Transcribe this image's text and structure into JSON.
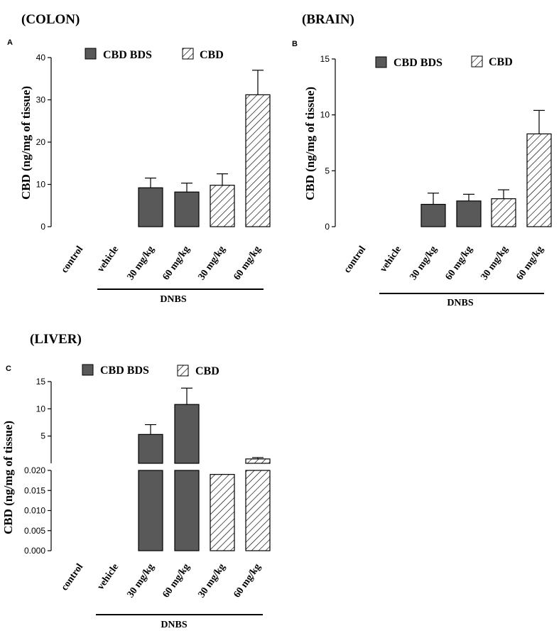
{
  "figure": {
    "colors": {
      "cbd_bds": "#595959",
      "cbd": "#ffffff",
      "axis": "#000000"
    },
    "x_group_label": "DNBS"
  },
  "chart_data": [
    {
      "type": "bar",
      "panel": "A",
      "title": "(COLON)",
      "ylabel": "CBD (ng/mg of tissue)",
      "ylim": [
        0,
        40
      ],
      "yticks": [
        "0",
        "10",
        "20",
        "30",
        "40"
      ],
      "yticks_values": [
        0,
        10,
        20,
        30,
        40
      ],
      "categories": [
        "control",
        "vehicle",
        "30 mg/kg",
        "60 mg/kg",
        "30 mg/kg",
        "60 mg/kg"
      ],
      "group_label": "DNBS",
      "legend": [
        "CBD BDS",
        "CBD"
      ],
      "series": [
        {
          "name": "CBD BDS",
          "values": [
            null,
            null,
            9.2,
            8.2,
            null,
            null
          ],
          "errors": [
            null,
            null,
            2.3,
            2.1,
            null,
            null
          ]
        },
        {
          "name": "CBD",
          "values": [
            null,
            null,
            null,
            null,
            9.8,
            31.2
          ],
          "errors": [
            null,
            null,
            null,
            null,
            2.7,
            5.8
          ]
        }
      ]
    },
    {
      "type": "bar",
      "panel": "B",
      "title": "(BRAIN)",
      "ylabel": "CBD (ng/mg of tissue)",
      "ylim": [
        0,
        15
      ],
      "yticks": [
        "0",
        "5",
        "10",
        "15"
      ],
      "yticks_values": [
        0,
        5,
        10,
        15
      ],
      "categories": [
        "control",
        "vehicle",
        "30 mg/kg",
        "60 mg/kg",
        "30 mg/kg",
        "60 mg/kg"
      ],
      "group_label": "DNBS",
      "legend": [
        "CBD BDS",
        "CBD"
      ],
      "series": [
        {
          "name": "CBD BDS",
          "values": [
            null,
            null,
            2.0,
            2.3,
            null,
            null
          ],
          "errors": [
            null,
            null,
            1.0,
            0.6,
            null,
            null
          ]
        },
        {
          "name": "CBD",
          "values": [
            null,
            null,
            null,
            null,
            2.5,
            8.3
          ],
          "errors": [
            null,
            null,
            null,
            null,
            0.8,
            2.1
          ]
        }
      ]
    },
    {
      "type": "bar",
      "panel": "C",
      "title": "(LIVER)",
      "ylabel": "CBD (ng/mg of tissue)",
      "axis_break": true,
      "ylim_lower": [
        0,
        0.02
      ],
      "ylim_upper": [
        0,
        15
      ],
      "yticks_lower": [
        "0.000",
        "0.005",
        "0.010",
        "0.015",
        "0.020"
      ],
      "yticks_lower_values": [
        0,
        0.005,
        0.01,
        0.015,
        0.02
      ],
      "yticks_upper": [
        "5",
        "10",
        "15"
      ],
      "yticks_upper_values": [
        5,
        10,
        15
      ],
      "categories": [
        "control",
        "vehicle",
        "30 mg/kg",
        "60 mg/kg",
        "30 mg/kg",
        "60 mg/kg"
      ],
      "group_label": "DNBS",
      "legend": [
        "CBD BDS",
        "CBD"
      ],
      "series": [
        {
          "name": "CBD BDS",
          "values": [
            null,
            null,
            5.3,
            10.8,
            null,
            null
          ],
          "errors": [
            null,
            null,
            1.8,
            3.0,
            null,
            null
          ]
        },
        {
          "name": "CBD",
          "values": [
            null,
            null,
            null,
            null,
            0.019,
            0.8
          ],
          "errors": [
            null,
            null,
            null,
            null,
            0,
            0.25
          ]
        }
      ]
    }
  ]
}
